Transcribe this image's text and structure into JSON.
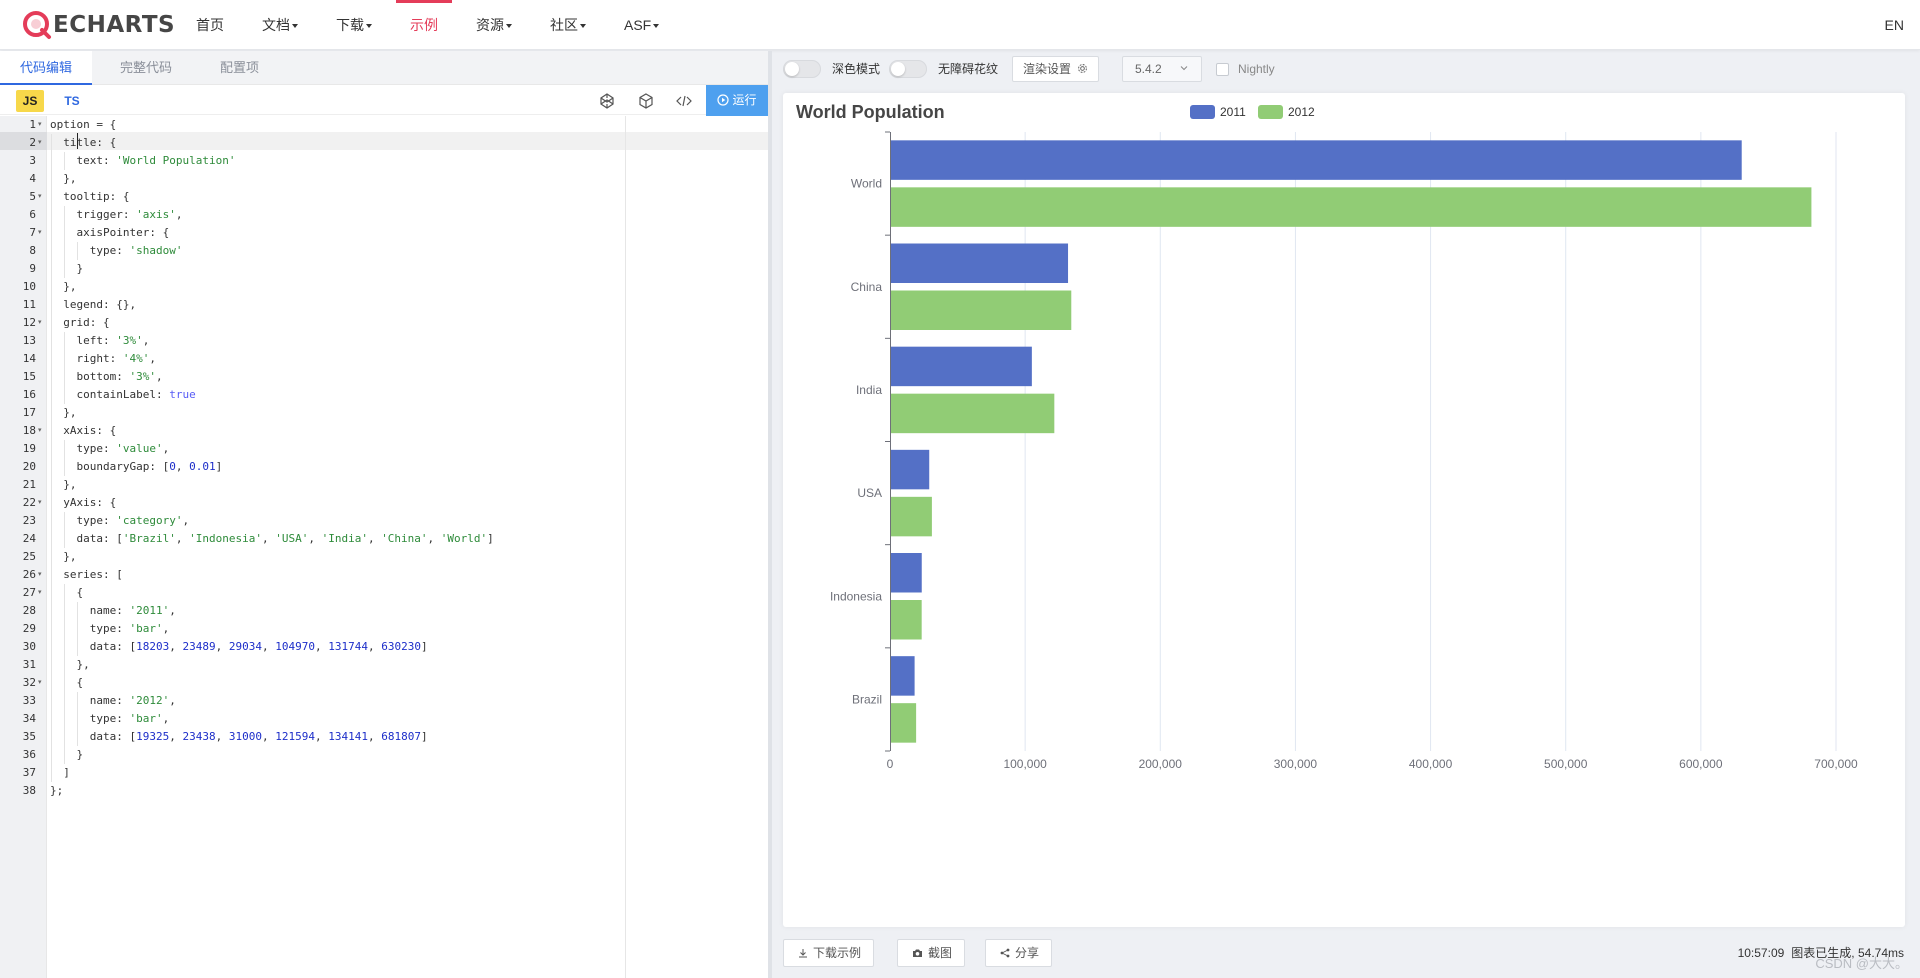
{
  "nav": {
    "logo_text": "ECHARTS",
    "items": [
      {
        "label": "首页",
        "dropdown": false,
        "active": false
      },
      {
        "label": "文档",
        "dropdown": true,
        "active": false
      },
      {
        "label": "下载",
        "dropdown": true,
        "active": false
      },
      {
        "label": "示例",
        "dropdown": false,
        "active": true
      },
      {
        "label": "资源",
        "dropdown": true,
        "active": false
      },
      {
        "label": "社区",
        "dropdown": true,
        "active": false
      },
      {
        "label": "ASF",
        "dropdown": true,
        "active": false
      }
    ],
    "lang": "EN"
  },
  "editor": {
    "tabs": [
      "代码编辑",
      "完整代码",
      "配置项"
    ],
    "lang_js": "JS",
    "lang_ts": "TS",
    "run_label": "运行",
    "lines": [
      [
        [
          "option = {",
          ""
        ]
      ],
      [
        [
          "  title: {",
          ""
        ]
      ],
      [
        [
          "    text: ",
          ""
        ],
        [
          "'World Population'",
          "str"
        ]
      ],
      [
        [
          "  },",
          ""
        ]
      ],
      [
        [
          "  tooltip: {",
          ""
        ]
      ],
      [
        [
          "    trigger: ",
          ""
        ],
        [
          "'axis'",
          "str"
        ],
        [
          ",",
          ""
        ]
      ],
      [
        [
          "    axisPointer: {",
          ""
        ]
      ],
      [
        [
          "      type: ",
          ""
        ],
        [
          "'shadow'",
          "str"
        ]
      ],
      [
        [
          "    }",
          ""
        ]
      ],
      [
        [
          "  },",
          ""
        ]
      ],
      [
        [
          "  legend: {},",
          ""
        ]
      ],
      [
        [
          "  grid: {",
          ""
        ]
      ],
      [
        [
          "    left: ",
          ""
        ],
        [
          "'3%'",
          "str"
        ],
        [
          ",",
          ""
        ]
      ],
      [
        [
          "    right: ",
          ""
        ],
        [
          "'4%'",
          "str"
        ],
        [
          ",",
          ""
        ]
      ],
      [
        [
          "    bottom: ",
          ""
        ],
        [
          "'3%'",
          "str"
        ],
        [
          ",",
          ""
        ]
      ],
      [
        [
          "    containLabel: ",
          ""
        ],
        [
          "true",
          "bool"
        ]
      ],
      [
        [
          "  },",
          ""
        ]
      ],
      [
        [
          "  xAxis: {",
          ""
        ]
      ],
      [
        [
          "    type: ",
          ""
        ],
        [
          "'value'",
          "str"
        ],
        [
          ",",
          ""
        ]
      ],
      [
        [
          "    boundaryGap: [",
          ""
        ],
        [
          "0",
          "num"
        ],
        [
          ", ",
          ""
        ],
        [
          "0.01",
          "num"
        ],
        [
          "]",
          ""
        ]
      ],
      [
        [
          "  },",
          ""
        ]
      ],
      [
        [
          "  yAxis: {",
          ""
        ]
      ],
      [
        [
          "    type: ",
          ""
        ],
        [
          "'category'",
          "str"
        ],
        [
          ",",
          ""
        ]
      ],
      [
        [
          "    data: [",
          ""
        ],
        [
          "'Brazil'",
          "str"
        ],
        [
          ", ",
          ""
        ],
        [
          "'Indonesia'",
          "str"
        ],
        [
          ", ",
          ""
        ],
        [
          "'USA'",
          "str"
        ],
        [
          ", ",
          ""
        ],
        [
          "'India'",
          "str"
        ],
        [
          ", ",
          ""
        ],
        [
          "'China'",
          "str"
        ],
        [
          ", ",
          ""
        ],
        [
          "'World'",
          "str"
        ],
        [
          "]",
          ""
        ]
      ],
      [
        [
          "  },",
          ""
        ]
      ],
      [
        [
          "  series: [",
          ""
        ]
      ],
      [
        [
          "    {",
          ""
        ]
      ],
      [
        [
          "      name: ",
          ""
        ],
        [
          "'2011'",
          "str"
        ],
        [
          ",",
          ""
        ]
      ],
      [
        [
          "      type: ",
          ""
        ],
        [
          "'bar'",
          "str"
        ],
        [
          ",",
          ""
        ]
      ],
      [
        [
          "      data: [",
          ""
        ],
        [
          "18203",
          "num"
        ],
        [
          ", ",
          ""
        ],
        [
          "23489",
          "num"
        ],
        [
          ", ",
          ""
        ],
        [
          "29034",
          "num"
        ],
        [
          ", ",
          ""
        ],
        [
          "104970",
          "num"
        ],
        [
          ", ",
          ""
        ],
        [
          "131744",
          "num"
        ],
        [
          ", ",
          ""
        ],
        [
          "630230",
          "num"
        ],
        [
          "]",
          ""
        ]
      ],
      [
        [
          "    },",
          ""
        ]
      ],
      [
        [
          "    {",
          ""
        ]
      ],
      [
        [
          "      name: ",
          ""
        ],
        [
          "'2012'",
          "str"
        ],
        [
          ",",
          ""
        ]
      ],
      [
        [
          "      type: ",
          ""
        ],
        [
          "'bar'",
          "str"
        ],
        [
          ",",
          ""
        ]
      ],
      [
        [
          "      data: [",
          ""
        ],
        [
          "19325",
          "num"
        ],
        [
          ", ",
          ""
        ],
        [
          "23438",
          "num"
        ],
        [
          ", ",
          ""
        ],
        [
          "31000",
          "num"
        ],
        [
          ", ",
          ""
        ],
        [
          "121594",
          "num"
        ],
        [
          ", ",
          ""
        ],
        [
          "134141",
          "num"
        ],
        [
          ", ",
          ""
        ],
        [
          "681807",
          "num"
        ],
        [
          "]",
          ""
        ]
      ],
      [
        [
          "    }",
          ""
        ]
      ],
      [
        [
          "  ]",
          ""
        ]
      ],
      [
        [
          "};",
          ""
        ]
      ]
    ],
    "fold_lines": [
      1,
      2,
      5,
      7,
      12,
      18,
      22,
      26,
      27,
      32
    ]
  },
  "toolbar": {
    "dark_mode_label": "深色模式",
    "decal_label": "无障碍花纹",
    "render_settings_label": "渲染设置",
    "version": "5.4.2",
    "nightly_label": "Nightly"
  },
  "bottom": {
    "download_label": "下载示例",
    "screenshot_label": "截图",
    "share_label": "分享",
    "time": "10:57:09",
    "status_text": "图表已生成, 54.74ms",
    "watermark": "CSDN @大大。"
  },
  "colors": {
    "series_2011": "#5470c6",
    "series_2012": "#91cc75",
    "accent": "#e43c59",
    "run": "#4ea0ef"
  },
  "chart_data": {
    "type": "bar",
    "orientation": "horizontal",
    "title": "World Population",
    "categories": [
      "Brazil",
      "Indonesia",
      "USA",
      "India",
      "China",
      "World"
    ],
    "series": [
      {
        "name": "2011",
        "values": [
          18203,
          23489,
          29034,
          104970,
          131744,
          630230
        ]
      },
      {
        "name": "2012",
        "values": [
          19325,
          23438,
          31000,
          121594,
          134141,
          681807
        ]
      }
    ],
    "xlim": [
      0,
      700000
    ],
    "x_ticks": [
      0,
      100000,
      200000,
      300000,
      400000,
      500000,
      600000,
      700000
    ],
    "x_tick_labels": [
      "0",
      "100,000",
      "200,000",
      "300,000",
      "400,000",
      "500,000",
      "600,000",
      "700,000"
    ],
    "legend": "top-center",
    "grid": true
  }
}
